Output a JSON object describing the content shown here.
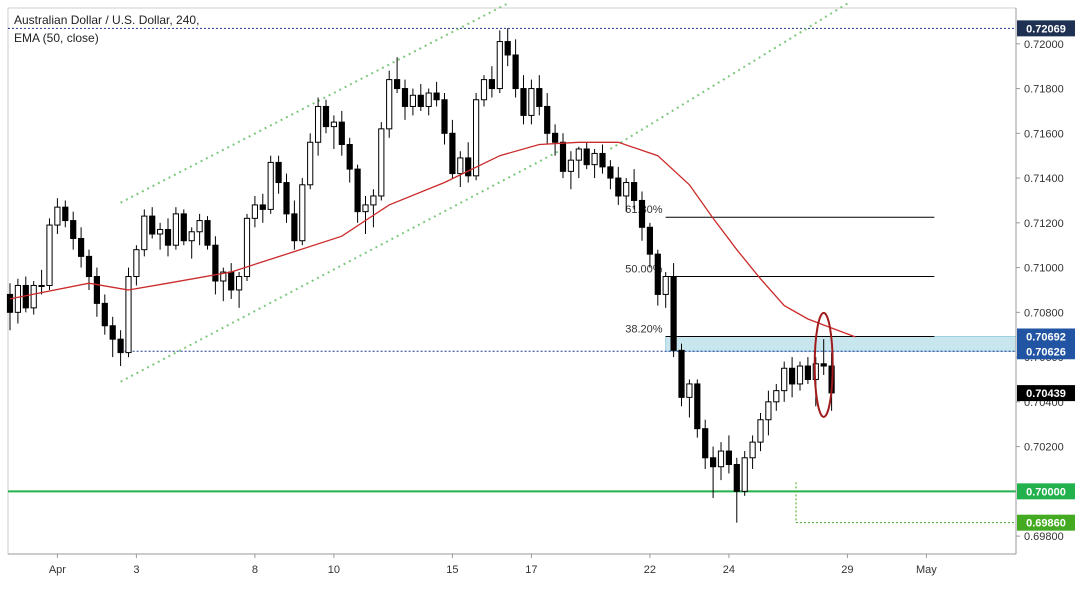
{
  "header": {
    "title": "Australian Dollar / U.S. Dollar, 240,",
    "indicator": "EMA (50, close)"
  },
  "colors": {
    "candle_up_fill": "#ffffff",
    "candle_down_fill": "#000000",
    "candle_outline": "#000000",
    "ema_line": "#cc2a2a",
    "channel_dots": "#7fc87f",
    "support_line": "#22b14c",
    "blue_dotted": "#1f3a93",
    "fib_zone": "#c8e6ee",
    "ellipse": "#a01c1c"
  },
  "chart_data": {
    "type": "candlestick",
    "title": "Australian Dollar / U.S. Dollar, 240,",
    "indicator": "EMA (50, close)",
    "ylim": [
      0.6972,
      0.7216
    ],
    "y_ticks": [
      "0.72000",
      "0.71800",
      "0.71600",
      "0.71400",
      "0.71200",
      "0.71000",
      "0.70800",
      "0.70600",
      "0.70400",
      "0.70200",
      "0.69800"
    ],
    "x_ticks": [
      {
        "label": "Apr",
        "index": 6
      },
      {
        "label": "3",
        "index": 16
      },
      {
        "label": "8",
        "index": 31
      },
      {
        "label": "10",
        "index": 41
      },
      {
        "label": "15",
        "index": 56
      },
      {
        "label": "17",
        "index": 66
      },
      {
        "label": "22",
        "index": 81
      },
      {
        "label": "24",
        "index": 91
      },
      {
        "label": "29",
        "index": 106
      },
      {
        "label": "May",
        "index": 116
      }
    ],
    "candles": [
      [
        0.7088,
        0.7093,
        0.7072,
        0.708
      ],
      [
        0.708,
        0.7095,
        0.7075,
        0.7092
      ],
      [
        0.7092,
        0.7096,
        0.708,
        0.7082
      ],
      [
        0.7082,
        0.7094,
        0.7079,
        0.7092
      ],
      [
        0.7092,
        0.7099,
        0.7088,
        0.7092
      ],
      [
        0.7092,
        0.7122,
        0.709,
        0.7119
      ],
      [
        0.7119,
        0.7131,
        0.7115,
        0.7127
      ],
      [
        0.7127,
        0.713,
        0.7118,
        0.7121
      ],
      [
        0.7121,
        0.7125,
        0.7108,
        0.7113
      ],
      [
        0.7113,
        0.7118,
        0.71,
        0.7105
      ],
      [
        0.7105,
        0.7108,
        0.709,
        0.7096
      ],
      [
        0.7096,
        0.71,
        0.7078,
        0.7084
      ],
      [
        0.7084,
        0.7088,
        0.707,
        0.7074
      ],
      [
        0.7074,
        0.7078,
        0.706,
        0.7068
      ],
      [
        0.7068,
        0.7072,
        0.7056,
        0.7062
      ],
      [
        0.7062,
        0.71,
        0.706,
        0.7096
      ],
      [
        0.7096,
        0.711,
        0.7092,
        0.7108
      ],
      [
        0.7108,
        0.7126,
        0.7105,
        0.7123
      ],
      [
        0.7123,
        0.7127,
        0.7113,
        0.7115
      ],
      [
        0.7115,
        0.712,
        0.7108,
        0.7117
      ],
      [
        0.7117,
        0.7122,
        0.7105,
        0.711
      ],
      [
        0.711,
        0.7127,
        0.7108,
        0.7124
      ],
      [
        0.7124,
        0.7126,
        0.711,
        0.7112
      ],
      [
        0.7112,
        0.7118,
        0.7104,
        0.7116
      ],
      [
        0.7116,
        0.7124,
        0.711,
        0.7121
      ],
      [
        0.7121,
        0.7123,
        0.7108,
        0.711
      ],
      [
        0.711,
        0.7114,
        0.7088,
        0.7094
      ],
      [
        0.7094,
        0.71,
        0.7085,
        0.7098
      ],
      [
        0.7098,
        0.7102,
        0.7086,
        0.709
      ],
      [
        0.709,
        0.7098,
        0.7082,
        0.7096
      ],
      [
        0.7096,
        0.7124,
        0.7094,
        0.7122
      ],
      [
        0.7122,
        0.7132,
        0.7118,
        0.7128
      ],
      [
        0.7128,
        0.7133,
        0.712,
        0.7126
      ],
      [
        0.7126,
        0.715,
        0.7124,
        0.7147
      ],
      [
        0.7147,
        0.715,
        0.7133,
        0.7138
      ],
      [
        0.7138,
        0.7142,
        0.712,
        0.7124
      ],
      [
        0.7124,
        0.713,
        0.7108,
        0.7112
      ],
      [
        0.7112,
        0.714,
        0.711,
        0.7137
      ],
      [
        0.7137,
        0.716,
        0.7135,
        0.7156
      ],
      [
        0.7156,
        0.7176,
        0.715,
        0.7172
      ],
      [
        0.7172,
        0.7175,
        0.716,
        0.7163
      ],
      [
        0.7163,
        0.7168,
        0.7153,
        0.7165
      ],
      [
        0.7165,
        0.717,
        0.715,
        0.7155
      ],
      [
        0.7155,
        0.7158,
        0.7138,
        0.7144
      ],
      [
        0.7144,
        0.7146,
        0.712,
        0.7125
      ],
      [
        0.7125,
        0.7132,
        0.7115,
        0.7128
      ],
      [
        0.7128,
        0.7135,
        0.7118,
        0.7132
      ],
      [
        0.7132,
        0.7165,
        0.713,
        0.7162
      ],
      [
        0.7162,
        0.7188,
        0.7158,
        0.7184
      ],
      [
        0.7184,
        0.7194,
        0.7178,
        0.718
      ],
      [
        0.718,
        0.7184,
        0.7166,
        0.7172
      ],
      [
        0.7172,
        0.718,
        0.7168,
        0.7177
      ],
      [
        0.7177,
        0.7182,
        0.717,
        0.7172
      ],
      [
        0.7172,
        0.718,
        0.7168,
        0.7178
      ],
      [
        0.7178,
        0.7183,
        0.7172,
        0.7175
      ],
      [
        0.7175,
        0.7178,
        0.7155,
        0.716
      ],
      [
        0.716,
        0.7166,
        0.714,
        0.7142
      ],
      [
        0.7142,
        0.7152,
        0.7136,
        0.7149
      ],
      [
        0.7149,
        0.7156,
        0.7138,
        0.7141
      ],
      [
        0.7141,
        0.7178,
        0.7139,
        0.7175
      ],
      [
        0.7175,
        0.7186,
        0.7172,
        0.7184
      ],
      [
        0.7184,
        0.719,
        0.7176,
        0.718
      ],
      [
        0.718,
        0.7206,
        0.7178,
        0.7201
      ],
      [
        0.7201,
        0.7207,
        0.719,
        0.7195
      ],
      [
        0.7195,
        0.7202,
        0.7176,
        0.718
      ],
      [
        0.718,
        0.7186,
        0.7164,
        0.7168
      ],
      [
        0.7168,
        0.7184,
        0.7164,
        0.718
      ],
      [
        0.718,
        0.7186,
        0.7168,
        0.7172
      ],
      [
        0.7172,
        0.7178,
        0.7155,
        0.716
      ],
      [
        0.716,
        0.7164,
        0.715,
        0.7156
      ],
      [
        0.7156,
        0.716,
        0.714,
        0.7143
      ],
      [
        0.7143,
        0.7152,
        0.7135,
        0.7148
      ],
      [
        0.7148,
        0.7154,
        0.714,
        0.7153
      ],
      [
        0.7153,
        0.7156,
        0.7144,
        0.7146
      ],
      [
        0.7146,
        0.7153,
        0.714,
        0.7151
      ],
      [
        0.7151,
        0.7155,
        0.7142,
        0.7145
      ],
      [
        0.7145,
        0.7148,
        0.7135,
        0.714
      ],
      [
        0.714,
        0.7145,
        0.7128,
        0.7132
      ],
      [
        0.7132,
        0.714,
        0.7125,
        0.7138
      ],
      [
        0.7138,
        0.7144,
        0.7126,
        0.713
      ],
      [
        0.713,
        0.7134,
        0.7112,
        0.7118
      ],
      [
        0.7118,
        0.712,
        0.71,
        0.7106
      ],
      [
        0.7106,
        0.7108,
        0.7083,
        0.7088
      ],
      [
        0.7088,
        0.7098,
        0.7082,
        0.7096
      ],
      [
        0.7096,
        0.7102,
        0.706,
        0.7063
      ],
      [
        0.7063,
        0.7066,
        0.7038,
        0.7042
      ],
      [
        0.7042,
        0.705,
        0.7033,
        0.7048
      ],
      [
        0.7048,
        0.705,
        0.7024,
        0.7028
      ],
      [
        0.7028,
        0.7032,
        0.701,
        0.7015
      ],
      [
        0.7015,
        0.702,
        0.6997,
        0.7011
      ],
      [
        0.7011,
        0.7022,
        0.7005,
        0.7018
      ],
      [
        0.7018,
        0.7025,
        0.7008,
        0.7012
      ],
      [
        0.7012,
        0.7015,
        0.6986,
        0.7
      ],
      [
        0.7,
        0.7018,
        0.6998,
        0.7015
      ],
      [
        0.7015,
        0.7025,
        0.701,
        0.7022
      ],
      [
        0.7022,
        0.7035,
        0.7018,
        0.7032
      ],
      [
        0.7032,
        0.7045,
        0.7025,
        0.704
      ],
      [
        0.704,
        0.7048,
        0.7036,
        0.7045
      ],
      [
        0.7045,
        0.7058,
        0.704,
        0.7055
      ],
      [
        0.7055,
        0.706,
        0.7042,
        0.7048
      ],
      [
        0.7048,
        0.7058,
        0.7045,
        0.7056
      ],
      [
        0.7056,
        0.706,
        0.7048,
        0.705
      ],
      [
        0.705,
        0.706,
        0.7038,
        0.7057
      ],
      [
        0.7057,
        0.7068,
        0.7052,
        0.7056
      ],
      [
        0.7056,
        0.7062,
        0.7036,
        0.7044
      ]
    ],
    "ema": [
      [
        0,
        0.7086
      ],
      [
        10,
        0.7093
      ],
      [
        15,
        0.709
      ],
      [
        20,
        0.7093
      ],
      [
        28,
        0.7098
      ],
      [
        35,
        0.7106
      ],
      [
        42,
        0.7114
      ],
      [
        48,
        0.7128
      ],
      [
        55,
        0.7138
      ],
      [
        62,
        0.715
      ],
      [
        67,
        0.7155
      ],
      [
        72,
        0.7156
      ],
      [
        77,
        0.7156
      ],
      [
        82,
        0.715
      ],
      [
        86,
        0.7137
      ],
      [
        89,
        0.7122
      ],
      [
        92,
        0.7108
      ],
      [
        95,
        0.7095
      ],
      [
        98,
        0.7083
      ],
      [
        101,
        0.7077
      ],
      [
        104,
        0.7073
      ],
      [
        107,
        0.7069
      ]
    ],
    "fib_levels": [
      {
        "label": "61.80%",
        "value": 0.71225
      },
      {
        "label": "50.00%",
        "value": 0.7096
      },
      {
        "label": "38.20%",
        "value": 0.70692
      }
    ],
    "fib_zone": {
      "top": 0.70692,
      "bottom": 0.70626
    },
    "horizontal_lines": [
      {
        "name": "top-dotted",
        "value": 0.72069,
        "style": "dotted"
      },
      {
        "name": "mid-dotted",
        "value": 0.70626,
        "style": "dotted"
      },
      {
        "name": "support",
        "value": 0.7,
        "style": "solid"
      },
      {
        "name": "low-dotted",
        "value": 0.6986,
        "style": "dotted"
      }
    ],
    "price_labels": [
      {
        "text": "0.72069",
        "value": 0.72069,
        "bg": "#1e3152",
        "fg": "#ffffff"
      },
      {
        "text": "0.70692",
        "value": 0.70692,
        "bg": "#2155a3",
        "fg": "#ffffff"
      },
      {
        "text": "0.70626",
        "value": 0.70626,
        "bg": "#2155a3",
        "fg": "#ffffff"
      },
      {
        "text": "0.70439",
        "value": 0.70439,
        "bg": "#000000",
        "fg": "#ffffff"
      },
      {
        "text": "0.70000",
        "value": 0.7,
        "bg": "#22b14c",
        "fg": "#ffffff"
      },
      {
        "text": "0.69860",
        "value": 0.6986,
        "bg": "#44aa22",
        "fg": "#ffffff"
      }
    ],
    "channel": {
      "upper": [
        [
          14,
          0.7129
        ],
        [
          63,
          0.7218
        ]
      ],
      "lower": [
        [
          14,
          0.7049
        ],
        [
          70,
          0.7153
        ]
      ],
      "extension": [
        [
          76,
          0.7153
        ],
        [
          106,
          0.7218
        ]
      ]
    },
    "ellipse": {
      "index": 103,
      "value": 0.70565
    }
  }
}
